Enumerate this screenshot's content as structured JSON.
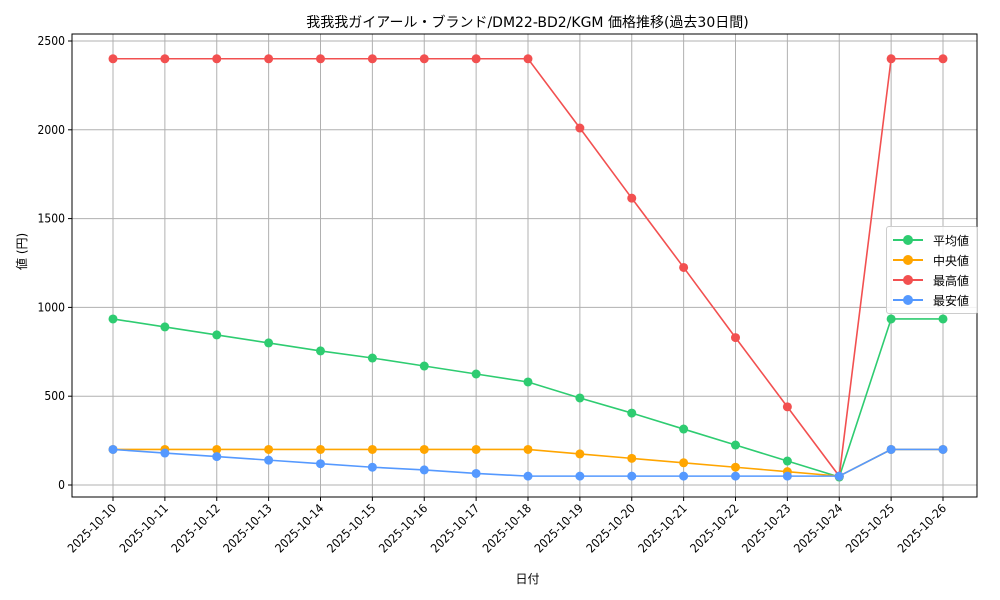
{
  "title": "我我我ガイアール・ブランド/DM22-BD2/KGM 価格推移(過去30日間)",
  "xlabel": "日付",
  "ylabel": "値 (円)",
  "legend": [
    {
      "label": "平均値",
      "color": "#2ecc71"
    },
    {
      "label": "中央値",
      "color": "#ffa500"
    },
    {
      "label": "最高値",
      "color": "#f25050"
    },
    {
      "label": "最安値",
      "color": "#5599ff"
    }
  ],
  "chart_data": {
    "type": "line",
    "title": "我我我ガイアール・ブランド/DM22-BD2/KGM 価格推移(過去30日間)",
    "xlabel": "日付",
    "ylabel": "値 (円)",
    "ylim": [
      -70,
      2520
    ],
    "yticks": [
      0,
      500,
      1000,
      1500,
      2000,
      2500
    ],
    "grid": true,
    "legend_position": "center right",
    "categories": [
      "2025-10-10",
      "2025-10-11",
      "2025-10-12",
      "2025-10-13",
      "2025-10-14",
      "2025-10-15",
      "2025-10-16",
      "2025-10-17",
      "2025-10-18",
      "2025-10-19",
      "2025-10-20",
      "2025-10-21",
      "2025-10-22",
      "2025-10-23",
      "2025-10-24",
      "2025-10-25",
      "2025-10-26"
    ],
    "series": [
      {
        "name": "平均値",
        "color": "#2ecc71",
        "values": [
          935,
          890,
          845,
          800,
          755,
          715,
          670,
          625,
          580,
          490,
          405,
          315,
          225,
          135,
          45,
          935,
          935
        ]
      },
      {
        "name": "中央値",
        "color": "#ffa500",
        "values": [
          200,
          200,
          200,
          200,
          200,
          200,
          200,
          200,
          200,
          175,
          150,
          125,
          100,
          75,
          50,
          200,
          200
        ]
      },
      {
        "name": "最高値",
        "color": "#f25050",
        "values": [
          2400,
          2400,
          2400,
          2400,
          2400,
          2400,
          2400,
          2400,
          2400,
          2010,
          1615,
          1225,
          830,
          440,
          50,
          2400,
          2400
        ]
      },
      {
        "name": "最安値",
        "color": "#5599ff",
        "values": [
          200,
          180,
          160,
          140,
          120,
          100,
          85,
          65,
          50,
          50,
          50,
          50,
          50,
          50,
          50,
          200,
          200
        ]
      }
    ]
  }
}
